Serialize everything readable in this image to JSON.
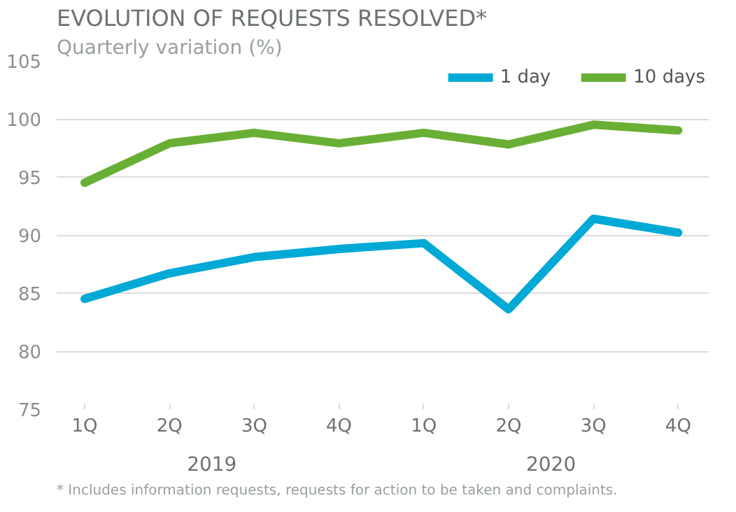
{
  "chart_data": {
    "type": "line",
    "title": "EVOLUTION OF REQUESTS RESOLVED*",
    "subtitle": "Quarterly variation (%)",
    "categories": [
      "1Q",
      "2Q",
      "3Q",
      "4Q",
      "1Q",
      "2Q",
      "3Q",
      "4Q"
    ],
    "series": [
      {
        "name": "1 day",
        "color": "#00a9d6",
        "values": [
          84.5,
          86.7,
          88.1,
          88.8,
          89.3,
          83.6,
          91.4,
          90.2
        ]
      },
      {
        "name": "10 days",
        "color": "#6aaf35",
        "values": [
          94.5,
          97.9,
          98.8,
          97.9,
          98.8,
          97.8,
          99.5,
          99.0
        ]
      }
    ],
    "ylim": [
      75,
      105
    ],
    "yticks": [
      75,
      80,
      85,
      90,
      95,
      100,
      105
    ],
    "grid": "y",
    "legend": "top right",
    "line_style": "solid",
    "annotations": [
      "2019",
      "2020",
      "*  Includes information requests, requests for action to be taken and complaints."
    ]
  }
}
